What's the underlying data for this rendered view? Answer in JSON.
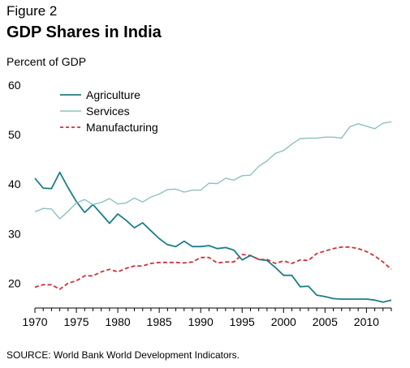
{
  "figure_label": "Figure 2",
  "title": "GDP Shares in India",
  "ylabel": "Percent of GDP",
  "source": "SOURCE: World Bank World Development Indicators.",
  "colors": {
    "agriculture": "#1b7f86",
    "services": "#8fbfc2",
    "manufacturing": "#d0323a",
    "axis": "#000000"
  },
  "chart_data": {
    "type": "line",
    "xlim": [
      1970,
      2013
    ],
    "ylim": [
      15,
      60
    ],
    "xticks": [
      1970,
      1975,
      1980,
      1985,
      1990,
      1995,
      2000,
      2005,
      2010
    ],
    "yticks": [
      20,
      30,
      40,
      50,
      60
    ],
    "grid": false,
    "legend_position": "top-left",
    "x": [
      1970,
      1971,
      1972,
      1973,
      1974,
      1975,
      1976,
      1977,
      1978,
      1979,
      1980,
      1981,
      1982,
      1983,
      1984,
      1985,
      1986,
      1987,
      1988,
      1989,
      1990,
      1991,
      1992,
      1993,
      1994,
      1995,
      1996,
      1997,
      1998,
      1999,
      2000,
      2001,
      2002,
      2003,
      2004,
      2005,
      2006,
      2007,
      2008,
      2009,
      2010,
      2011,
      2012,
      2013
    ],
    "series": [
      {
        "name": "Agriculture",
        "style": "solid",
        "values": [
          41.2,
          39.2,
          39.1,
          42.4,
          39.3,
          36.5,
          34.3,
          35.9,
          34.0,
          32.1,
          34.0,
          32.7,
          31.2,
          32.2,
          30.6,
          29.0,
          27.8,
          27.4,
          28.5,
          27.4,
          27.4,
          27.6,
          27.0,
          27.2,
          26.7,
          24.7,
          25.6,
          24.8,
          24.6,
          23.2,
          21.6,
          21.6,
          19.3,
          19.4,
          17.6,
          17.3,
          16.9,
          16.8,
          16.8,
          16.8,
          16.8,
          16.6,
          16.2,
          16.6
        ]
      },
      {
        "name": "Services",
        "style": "solid",
        "values": [
          34.4,
          35.1,
          35.0,
          33.0,
          34.5,
          36.2,
          36.9,
          35.9,
          36.3,
          37.1,
          36.0,
          36.2,
          37.2,
          36.4,
          37.4,
          38.0,
          38.9,
          39.0,
          38.4,
          38.8,
          38.8,
          40.2,
          40.1,
          41.2,
          40.8,
          41.7,
          41.8,
          43.6,
          44.7,
          46.2,
          46.8,
          48.1,
          49.2,
          49.3,
          49.3,
          49.5,
          49.5,
          49.3,
          51.6,
          52.2,
          51.7,
          51.2,
          52.3,
          52.6
        ]
      },
      {
        "name": "Manufacturing",
        "style": "dashed",
        "values": [
          19.2,
          19.7,
          19.7,
          18.8,
          20.0,
          20.5,
          21.5,
          21.5,
          22.3,
          22.8,
          22.3,
          23.0,
          23.5,
          23.5,
          24.0,
          24.2,
          24.2,
          24.2,
          24.1,
          24.3,
          25.2,
          25.2,
          24.1,
          24.3,
          24.3,
          25.8,
          25.6,
          24.8,
          24.8,
          24.0,
          24.5,
          24.0,
          24.7,
          24.6,
          26.0,
          26.5,
          27.0,
          27.3,
          27.3,
          27.0,
          26.4,
          25.5,
          24.3,
          22.8
        ]
      }
    ]
  }
}
